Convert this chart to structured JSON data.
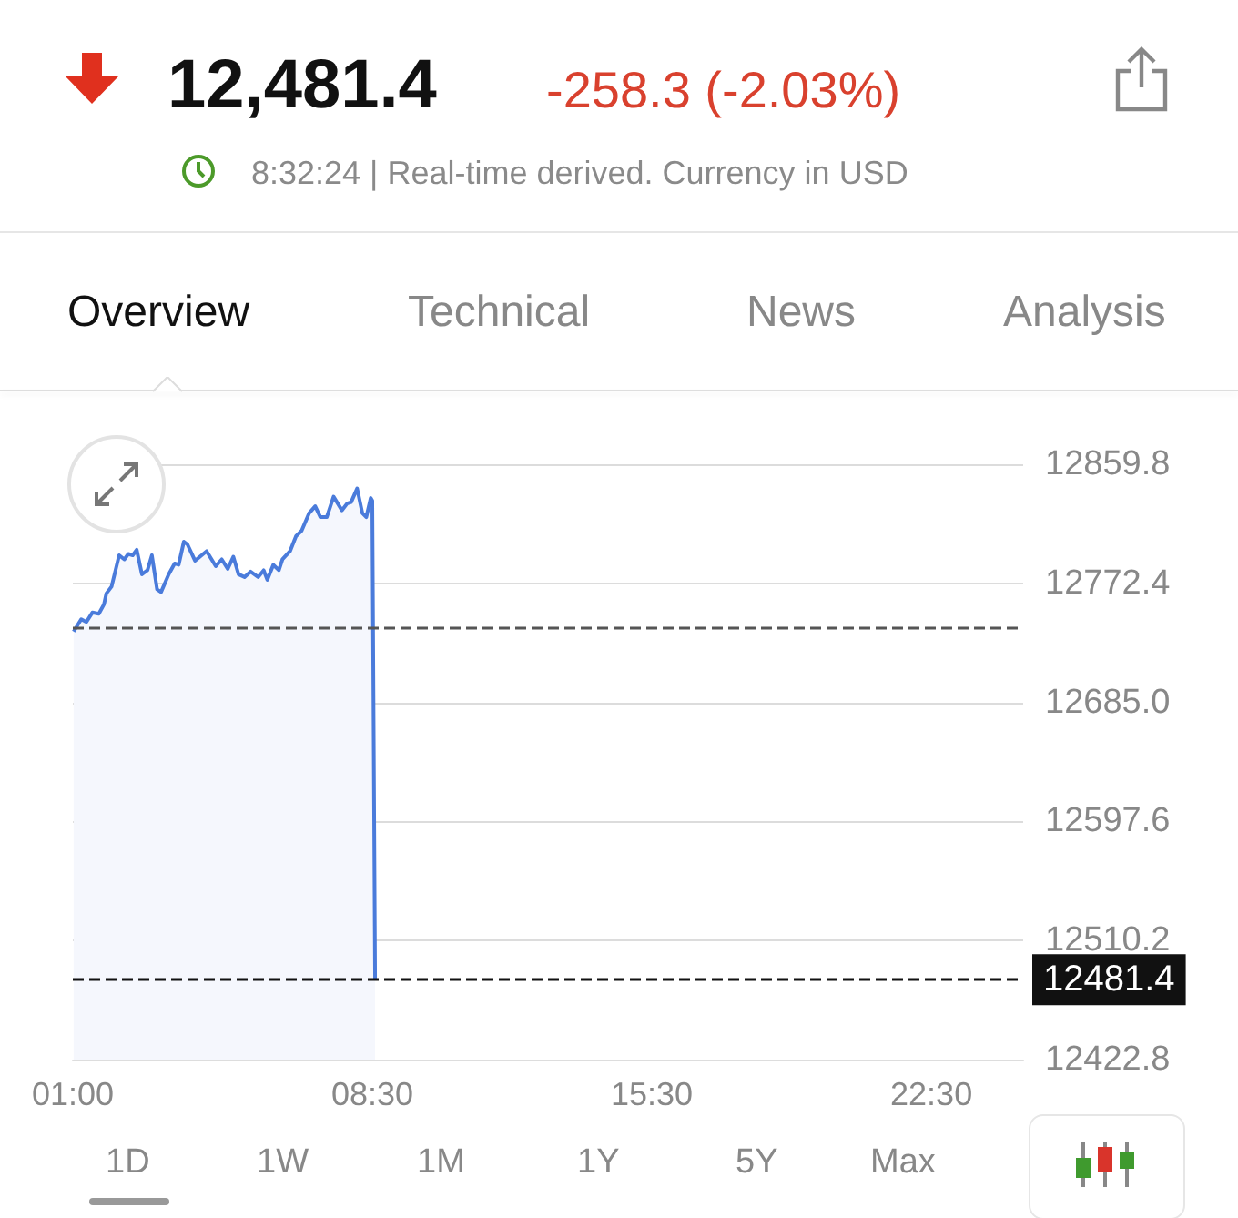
{
  "chart_data": {
    "type": "area",
    "title": "12,481.4",
    "subtitle": "-258.3 (-2.03%)",
    "annotations": [
      "8:32:24 | Real-time derived. Currency in USD",
      "Overview",
      "Technical",
      "News",
      "Analysis",
      "1D",
      "1W",
      "1M",
      "1Y",
      "5Y",
      "Max"
    ],
    "x": [
      1.02,
      1.21,
      1.34,
      1.49,
      1.65,
      1.78,
      1.84,
      1.97,
      2.16,
      2.29,
      2.39,
      2.5,
      2.6,
      2.73,
      2.87,
      2.98,
      3.11,
      3.21,
      3.4,
      3.55,
      3.65,
      3.78,
      3.87,
      4.06,
      4.35,
      4.58,
      4.73,
      4.88,
      5.02,
      5.15,
      5.3,
      5.45,
      5.64,
      5.78,
      5.87,
      6.02,
      6.16,
      6.25,
      6.44,
      6.59,
      6.73,
      6.92,
      7.07,
      7.2,
      7.36,
      7.53,
      7.74,
      7.87,
      7.97,
      8.12,
      8.25,
      8.35,
      8.46,
      8.5,
      8.57
    ],
    "series": [
      {
        "color": "#4a7bdb",
        "values": [
          12737,
          12746,
          12744,
          12751,
          12750,
          12757,
          12765,
          12770,
          12793,
          12790,
          12794,
          12793,
          12797,
          12779,
          12782,
          12793,
          12768,
          12766,
          12779,
          12787,
          12786,
          12803,
          12801,
          12789,
          12796,
          12785,
          12790,
          12783,
          12792,
          12779,
          12777,
          12781,
          12777,
          12782,
          12775,
          12786,
          12782,
          12790,
          12796,
          12807,
          12811,
          12824,
          12829,
          12821,
          12821,
          12836,
          12826,
          12831,
          12832,
          12842,
          12824,
          12821,
          12835,
          12833,
          12481.4
        ]
      }
    ],
    "xlim": [
      1,
      24.8
    ],
    "xticks": [
      {
        "value": 1,
        "label": "01:00"
      },
      {
        "value": 8.5,
        "label": "08:30"
      },
      {
        "value": 15.5,
        "label": "15:30"
      },
      {
        "value": 22.5,
        "label": "22:30"
      }
    ],
    "ylim": [
      12422.8,
      12859.8
    ],
    "yticks": [
      12422.8,
      12510.2,
      12597.6,
      {
        "value": 12685,
        "label": "12685.0"
      },
      12772.4,
      12859.8
    ],
    "grid": "y",
    "marker": "none",
    "line_style": "solid",
    "ref_lines": [
      {
        "axis": "y",
        "value": 12739.7,
        "label": null,
        "color": "#555555",
        "line_style": "dashed"
      },
      {
        "axis": "y",
        "value": 12481.4,
        "label": "12481.4",
        "color": "#111111",
        "line_style": "dashed"
      }
    ]
  }
}
